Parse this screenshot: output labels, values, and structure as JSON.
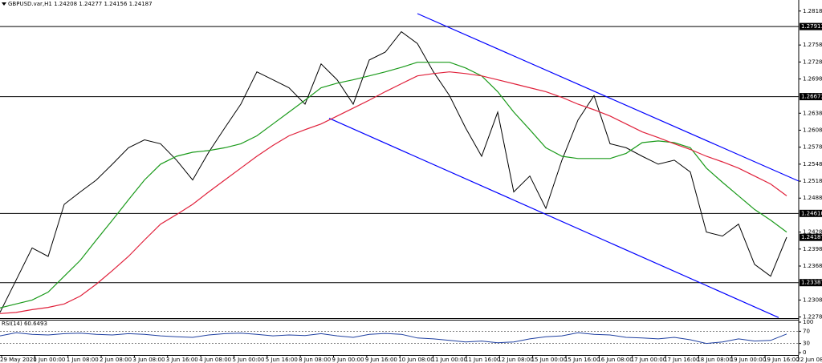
{
  "chart_data": [
    {
      "type": "line",
      "title": "GBPUSD.var,H1 1.24208 1.24277 1.24156 1.24187",
      "x": [
        0,
        1,
        2,
        3,
        4,
        5,
        6,
        7,
        8,
        9,
        10,
        11,
        12,
        13,
        14,
        15,
        16,
        17,
        18,
        19,
        20,
        21,
        22,
        23,
        24,
        25,
        26,
        27,
        28,
        29,
        30,
        31,
        32,
        33,
        34,
        35,
        36,
        37,
        38,
        39,
        40,
        41,
        42,
        43,
        44,
        45,
        46,
        47,
        48,
        49
      ],
      "xlim": [
        0,
        49.75
      ],
      "ylim": [
        1.2276,
        1.2838
      ],
      "x_labels": [
        "29 May 2020",
        "1 Jun 00:00",
        "1 Jun 08:00",
        "2 Jun 08:00",
        "3 Jun 08:00",
        "3 Jun 16:00",
        "4 Jun 08:00",
        "5 Jun 00:00",
        "5 Jun 16:00",
        "8 Jun 08:00",
        "9 Jun 00:00",
        "9 Jun 16:00",
        "10 Jun 08:00",
        "11 Jun 00:00",
        "11 Jun 16:00",
        "12 Jun 08:00",
        "15 Jun 00:00",
        "15 Jun 16:00",
        "16 Jun 08:00",
        "17 Jun 00:00",
        "17 Jun 16:00",
        "18 Jun 08:00",
        "19 Jun 00:00",
        "19 Jun 16:00",
        "22 Jun 08:00"
      ],
      "yticks": [
        1.28185,
        1.27585,
        1.27285,
        1.26985,
        {
          "value": 1.2638,
          "label": "1.26380"
        },
        {
          "value": 1.2608,
          "label": "1.26080"
        },
        {
          "value": 1.2578,
          "label": "1.25780"
        },
        {
          "value": 1.2548,
          "label": "1.25480"
        },
        {
          "value": 1.2518,
          "label": "1.25180"
        },
        {
          "value": 1.2488,
          "label": "1.24880"
        },
        {
          "value": 1.2428,
          "label": "1.24280"
        },
        {
          "value": 1.2398,
          "label": "1.23980"
        },
        {
          "value": 1.2368,
          "label": "1.23680"
        },
        {
          "value": 1.2308,
          "label": "1.23080"
        },
        {
          "value": 1.2278,
          "label": "1.22780"
        }
      ],
      "levels": [
        1.27911,
        1.26673,
        {
          "value": 1.2461,
          "label": "1.24610"
        },
        1.23387
      ],
      "last_price": 1.24187,
      "series": [
        {
          "color": "#000000",
          "values": [
            1.2286,
            1.2343,
            1.24,
            1.2385,
            1.2477,
            1.2499,
            1.252,
            1.2548,
            1.2577,
            1.2591,
            1.2584,
            1.2555,
            1.252,
            1.2569,
            1.2612,
            1.2654,
            1.2711,
            1.2697,
            1.2683,
            1.2654,
            1.2725,
            1.2697,
            1.2654,
            1.2732,
            1.2746,
            1.2782,
            1.2761,
            1.2711,
            1.2669,
            1.2612,
            1.2562,
            1.264,
            1.2499,
            1.2527,
            1.247,
            1.2555,
            1.2626,
            1.2669,
            1.2584,
            1.2577,
            1.2562,
            1.2548,
            1.2555,
            1.2534,
            1.2428,
            1.2421,
            1.2442,
            1.2371,
            1.235,
            1.2419
          ]
        },
        {
          "color": "#1a9a1a",
          "values": [
            1.2294,
            1.2301,
            1.2308,
            1.2322,
            1.235,
            1.2378,
            1.2414,
            1.2449,
            1.2485,
            1.252,
            1.2548,
            1.2562,
            1.2569,
            1.2572,
            1.2577,
            1.2584,
            1.2598,
            1.2619,
            1.264,
            1.2661,
            1.2683,
            1.2691,
            1.2697,
            1.2704,
            1.2711,
            1.2719,
            1.2728,
            1.2728,
            1.2728,
            1.2718,
            1.2704,
            1.2676,
            1.264,
            1.2609,
            1.2577,
            1.2562,
            1.2558,
            1.2558,
            1.2558,
            1.2567,
            1.2586,
            1.2589,
            1.2586,
            1.2577,
            1.2541,
            1.2516,
            1.2492,
            1.2468,
            1.2449,
            1.2428
          ]
        },
        {
          "color": "#e0213b",
          "values": [
            1.2284,
            1.2286,
            1.2291,
            1.2295,
            1.2301,
            1.2315,
            1.2336,
            1.236,
            1.2385,
            1.2414,
            1.2442,
            1.2459,
            1.2477,
            1.2499,
            1.252,
            1.2541,
            1.2562,
            1.2581,
            1.2598,
            1.2609,
            1.2619,
            1.2633,
            1.2647,
            1.2661,
            1.2676,
            1.269,
            1.2704,
            1.2708,
            1.2711,
            1.2708,
            1.2704,
            1.2697,
            1.269,
            1.2683,
            1.2676,
            1.2666,
            1.2654,
            1.2644,
            1.2633,
            1.2619,
            1.2605,
            1.2595,
            1.2584,
            1.2574,
            1.2562,
            1.2552,
            1.2541,
            1.2527,
            1.2513,
            1.2492
          ]
        }
      ],
      "trendlines": [
        {
          "color": "#0000ff",
          "x": [
            26,
            49.75
          ],
          "values": [
            1.2814,
            1.2518
          ]
        },
        {
          "color": "#0000ff",
          "x": [
            20.5,
            48.5
          ],
          "values": [
            1.2629,
            1.2277
          ]
        }
      ]
    },
    {
      "type": "line",
      "title": "RSI(14) 60.6493",
      "x": [
        0,
        1,
        2,
        3,
        4,
        5,
        6,
        7,
        8,
        9,
        10,
        11,
        12,
        13,
        14,
        15,
        16,
        17,
        18,
        19,
        20,
        21,
        22,
        23,
        24,
        25,
        26,
        27,
        28,
        29,
        30,
        31,
        32,
        33,
        34,
        35,
        36,
        37,
        38,
        39,
        40,
        41,
        42,
        43,
        44,
        45,
        46,
        47,
        48,
        49
      ],
      "xlim": [
        0,
        49.75
      ],
      "ylim": [
        0,
        100
      ],
      "yticks": [
        100,
        70,
        30,
        0
      ],
      "series": [
        {
          "color": "#1e3fa0",
          "values": [
            55,
            65,
            60,
            58,
            62,
            64,
            60,
            58,
            62,
            60,
            55,
            52,
            50,
            58,
            62,
            64,
            60,
            55,
            58,
            56,
            62,
            55,
            50,
            60,
            63,
            60,
            48,
            45,
            40,
            35,
            38,
            32,
            35,
            45,
            52,
            55,
            65,
            60,
            58,
            50,
            48,
            45,
            50,
            42,
            30,
            35,
            45,
            38,
            40,
            61
          ]
        }
      ]
    }
  ]
}
